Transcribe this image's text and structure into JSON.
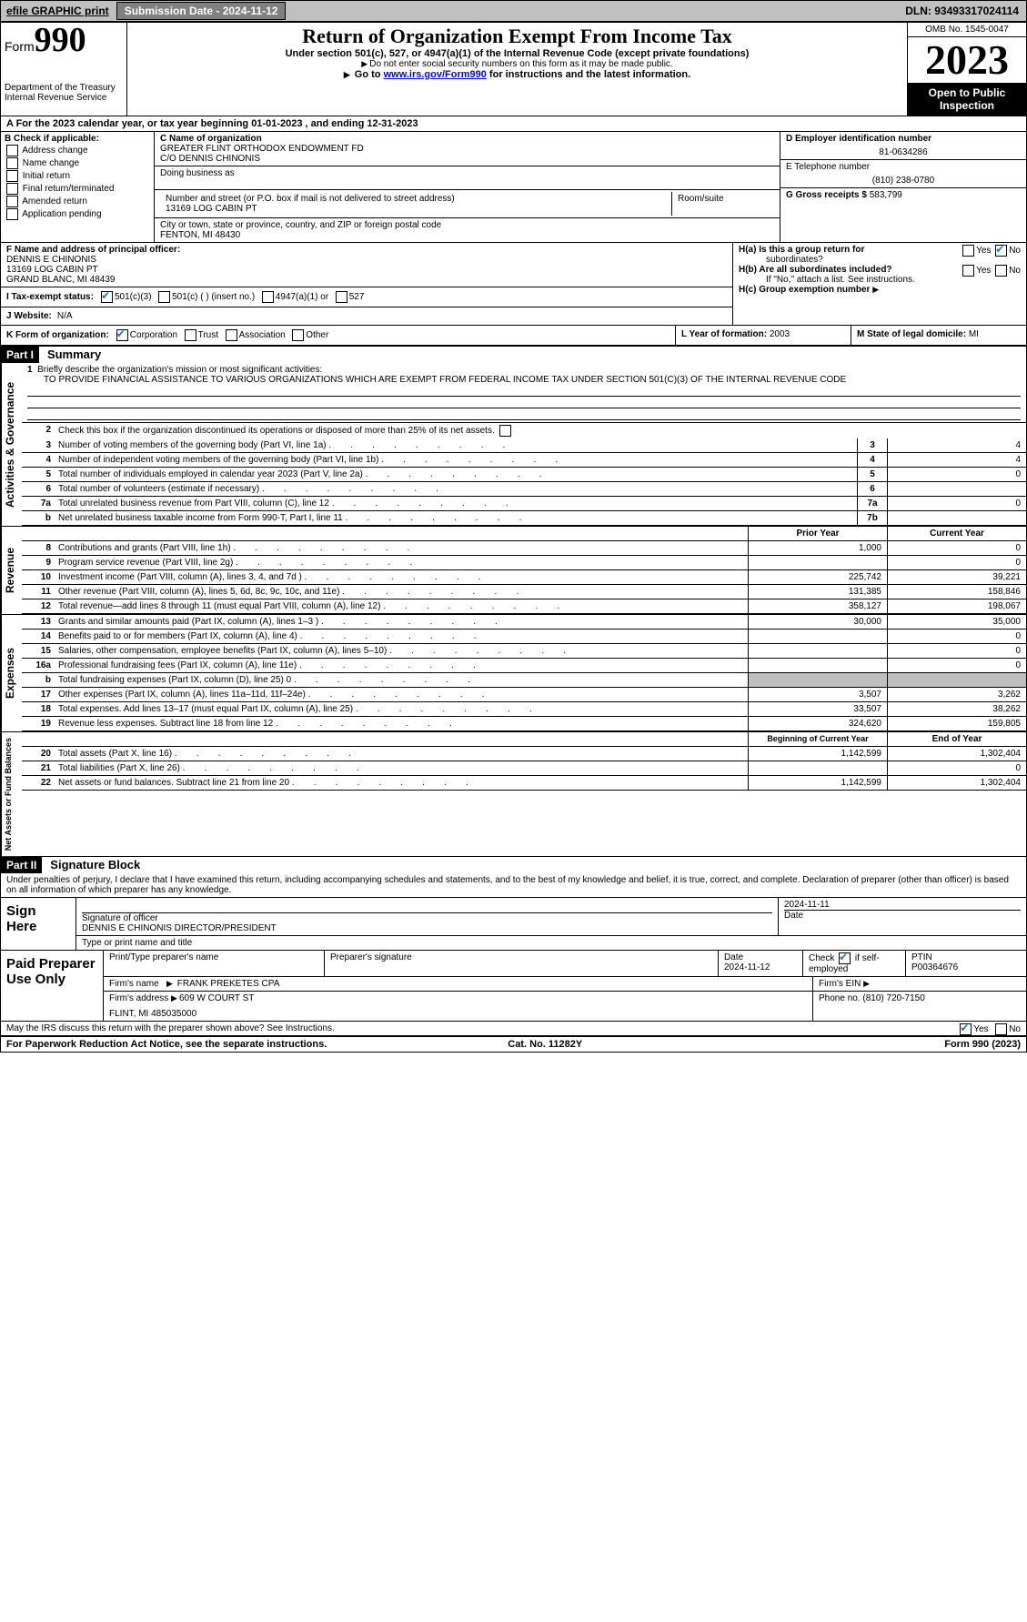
{
  "topbar": {
    "efile": "efile GRAPHIC print",
    "submission_label": "Submission Date - 2024-11-12",
    "dln": "DLN: 93493317024114"
  },
  "header": {
    "form_word": "Form",
    "form_num": "990",
    "title": "Return of Organization Exempt From Income Tax",
    "sub1": "Under section 501(c), 527, or 4947(a)(1) of the Internal Revenue Code (except private foundations)",
    "sub2": "Do not enter social security numbers on this form as it may be made public.",
    "sub3_pre": "Go to ",
    "sub3_link": "www.irs.gov/Form990",
    "sub3_post": " for instructions and the latest information.",
    "dept": "Department of the Treasury",
    "irs": "Internal Revenue Service",
    "omb": "OMB No. 1545-0047",
    "year": "2023",
    "open": "Open to Public Inspection"
  },
  "rowA": "A For the 2023 calendar year, or tax year beginning 01-01-2023   , and ending 12-31-2023",
  "secB": {
    "label": "B Check if applicable:",
    "addr": "Address change",
    "name": "Name change",
    "init": "Initial return",
    "final": "Final return/terminated",
    "amend": "Amended return",
    "app": "Application pending"
  },
  "secC": {
    "lbl_name": "C Name of organization",
    "org1": "GREATER FLINT ORTHODOX ENDOWMENT FD",
    "org2": "C/O DENNIS CHINONIS",
    "dba_lbl": "Doing business as",
    "addr_lbl": "Number and street (or P.O. box if mail is not delivered to street address)",
    "addr": "13169 LOG CABIN PT",
    "room_lbl": "Room/suite",
    "city_lbl": "City or town, state or province, country, and ZIP or foreign postal code",
    "city": "FENTON, MI  48430"
  },
  "secD": {
    "lbl": "D Employer identification number",
    "val": "81-0634286"
  },
  "secE": {
    "lbl": "E Telephone number",
    "val": "(810) 238-0780"
  },
  "secG": {
    "lbl": "G Gross receipts $",
    "val": "583,799"
  },
  "secF": {
    "lbl": "F Name and address of principal officer:",
    "name": "DENNIS E CHINONIS",
    "addr": "13169 LOG CABIN PT",
    "city": "GRAND BLANC, MI  48439"
  },
  "secH": {
    "a": "H(a)  Is this a group return for",
    "a2": "subordinates?",
    "b": "H(b)  Are all subordinates included?",
    "b2": "If \"No,\" attach a list. See instructions.",
    "c": "H(c)  Group exemption number",
    "yes": "Yes",
    "no": "No"
  },
  "secI": {
    "lbl": "I  Tax-exempt status:",
    "c501c3": "501(c)(3)",
    "c501c": "501(c) (  ) (insert no.)",
    "c4947": "4947(a)(1) or",
    "c527": "527"
  },
  "secJ": {
    "lbl": "J  Website:",
    "val": "N/A"
  },
  "secK": {
    "lbl": "K Form of organization:",
    "corp": "Corporation",
    "trust": "Trust",
    "assoc": "Association",
    "other": "Other"
  },
  "secL": {
    "lbl": "L Year of formation:",
    "val": "2003"
  },
  "secM": {
    "lbl": "M State of legal domicile:",
    "val": "MI"
  },
  "part1": {
    "bar": "Part I",
    "title": "Summary",
    "q1": "Briefly describe the organization's mission or most significant activities:",
    "q1val": "TO PROVIDE FINANCIAL ASSISTANCE TO VARIOUS ORGANIZATIONS WHICH ARE EXEMPT FROM FEDERAL INCOME TAX UNDER SECTION 501(C)(3) OF THE INTERNAL REVENUE CODE",
    "q2": "Check this box   if the organization discontinued its operations or disposed of more than 25% of its net assets.",
    "rows_gov": [
      {
        "n": "3",
        "d": "Number of voting members of the governing body (Part VI, line 1a)",
        "c": "3",
        "v": "4"
      },
      {
        "n": "4",
        "d": "Number of independent voting members of the governing body (Part VI, line 1b)",
        "c": "4",
        "v": "4"
      },
      {
        "n": "5",
        "d": "Total number of individuals employed in calendar year 2023 (Part V, line 2a)",
        "c": "5",
        "v": "0"
      },
      {
        "n": "6",
        "d": "Total number of volunteers (estimate if necessary)",
        "c": "6",
        "v": ""
      },
      {
        "n": "7a",
        "d": "Total unrelated business revenue from Part VIII, column (C), line 12",
        "c": "7a",
        "v": "0"
      },
      {
        "n": "b",
        "d": "Net unrelated business taxable income from Form 990-T, Part I, line 11",
        "c": "7b",
        "v": ""
      }
    ],
    "hdr_prior": "Prior Year",
    "hdr_curr": "Current Year",
    "rows_rev": [
      {
        "n": "8",
        "d": "Contributions and grants (Part VIII, line 1h)",
        "p": "1,000",
        "c": "0"
      },
      {
        "n": "9",
        "d": "Program service revenue (Part VIII, line 2g)",
        "p": "",
        "c": "0"
      },
      {
        "n": "10",
        "d": "Investment income (Part VIII, column (A), lines 3, 4, and 7d )",
        "p": "225,742",
        "c": "39,221"
      },
      {
        "n": "11",
        "d": "Other revenue (Part VIII, column (A), lines 5, 6d, 8c, 9c, 10c, and 11e)",
        "p": "131,385",
        "c": "158,846"
      },
      {
        "n": "12",
        "d": "Total revenue—add lines 8 through 11 (must equal Part VIII, column (A), line 12)",
        "p": "358,127",
        "c": "198,067"
      }
    ],
    "rows_exp": [
      {
        "n": "13",
        "d": "Grants and similar amounts paid (Part IX, column (A), lines 1–3 )",
        "p": "30,000",
        "c": "35,000"
      },
      {
        "n": "14",
        "d": "Benefits paid to or for members (Part IX, column (A), line 4)",
        "p": "",
        "c": "0"
      },
      {
        "n": "15",
        "d": "Salaries, other compensation, employee benefits (Part IX, column (A), lines 5–10)",
        "p": "",
        "c": "0"
      },
      {
        "n": "16a",
        "d": "Professional fundraising fees (Part IX, column (A), line 11e)",
        "p": "",
        "c": "0"
      },
      {
        "n": "b",
        "d": "Total fundraising expenses (Part IX, column (D), line 25) 0",
        "p": "grey",
        "c": "grey"
      },
      {
        "n": "17",
        "d": "Other expenses (Part IX, column (A), lines 11a–11d, 11f–24e)",
        "p": "3,507",
        "c": "3,262"
      },
      {
        "n": "18",
        "d": "Total expenses. Add lines 13–17 (must equal Part IX, column (A), line 25)",
        "p": "33,507",
        "c": "38,262"
      },
      {
        "n": "19",
        "d": "Revenue less expenses. Subtract line 18 from line 12",
        "p": "324,620",
        "c": "159,805"
      }
    ],
    "hdr_boy": "Beginning of Current Year",
    "hdr_eoy": "End of Year",
    "rows_net": [
      {
        "n": "20",
        "d": "Total assets (Part X, line 16)",
        "p": "1,142,599",
        "c": "1,302,404"
      },
      {
        "n": "21",
        "d": "Total liabilities (Part X, line 26)",
        "p": "",
        "c": "0"
      },
      {
        "n": "22",
        "d": "Net assets or fund balances. Subtract line 21 from line 20",
        "p": "1,142,599",
        "c": "1,302,404"
      }
    ],
    "vlabels": {
      "gov": "Activities & Governance",
      "rev": "Revenue",
      "exp": "Expenses",
      "net": "Net Assets or Fund Balances"
    }
  },
  "part2": {
    "bar": "Part II",
    "title": "Signature Block",
    "penalties": "Under penalties of perjury, I declare that I have examined this return, including accompanying schedules and statements, and to the best of my knowledge and belief, it is true, correct, and complete. Declaration of preparer (other than officer) is based on all information of which preparer has any knowledge."
  },
  "sign": {
    "here": "Sign Here",
    "sig_lbl": "Signature of officer",
    "officer": "DENNIS E CHINONIS  DIRECTOR/PRESIDENT",
    "type_lbl": "Type or print name and title",
    "date_lbl": "Date",
    "date": "2024-11-11"
  },
  "paid": {
    "title": "Paid Preparer Use Only",
    "print_lbl": "Print/Type preparer's name",
    "sig_lbl": "Preparer's signature",
    "date_lbl": "Date",
    "date": "2024-11-12",
    "chk_lbl": "Check",
    "chk_self": "if self-employed",
    "ptin_lbl": "PTIN",
    "ptin": "P00364676",
    "firm_lbl": "Firm's name",
    "firm": "FRANK PREKETES CPA",
    "ein_lbl": "Firm's EIN",
    "addr_lbl": "Firm's address",
    "addr": "609 W COURT ST",
    "city": "FLINT, MI  485035000",
    "phone_lbl": "Phone no.",
    "phone": "(810) 720-7150"
  },
  "discuss": "May the IRS discuss this return with the preparer shown above? See Instructions.",
  "footer": {
    "l": "For Paperwork Reduction Act Notice, see the separate instructions.",
    "m": "Cat. No. 11282Y",
    "r": "Form 990 (2023)"
  }
}
